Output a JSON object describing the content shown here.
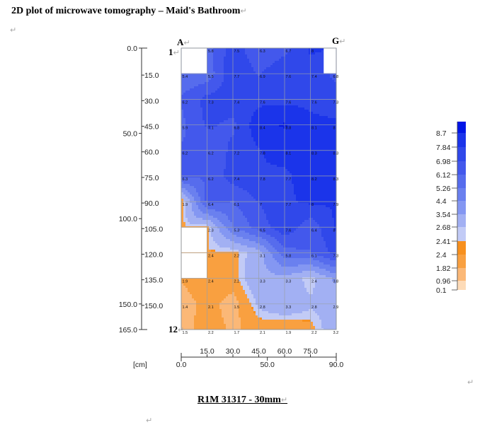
{
  "document": {
    "title": "2D plot of microwave tomography – Maid's Bathroom",
    "caption": "R1M 31317 - 30mm",
    "corner_a": "A",
    "corner_g": "G",
    "row_first": "1",
    "row_last": "12",
    "paragraph_mark": "↵"
  },
  "chart_data": {
    "type": "heatmap",
    "title": "2D plot of microwave tomography – Maid's Bathroom",
    "x_range": [
      0,
      90
    ],
    "y_range": [
      0,
      165
    ],
    "y_inverted": true,
    "x_ticks_bottom": [
      "0.0",
      "50.0",
      "90.0"
    ],
    "x_ticks_top": [
      "15.0",
      "30.0",
      "45.0",
      "60.0",
      "75.0"
    ],
    "y_ticks_left": [
      "0.0",
      "50.0",
      "100.0",
      "150.0",
      "165.0"
    ],
    "y_ticks_right": [
      "15.0",
      "30.0",
      "45.0",
      "60.0",
      "75.0",
      "90.0",
      "105.0",
      "120.0",
      "135.0",
      "150.0"
    ],
    "unit_label": "[cm]",
    "grid": true,
    "columns": 7,
    "rows": 12,
    "cell_values": [
      [
        "",
        "5.8",
        "7.5",
        "6.3",
        "6.7",
        "8",
        ""
      ],
      [
        "5.4",
        "5.5",
        "7.7",
        "6.9",
        "7.6",
        "7.4",
        "6.8"
      ],
      [
        "6.2",
        "7.3",
        "7.4",
        "7.6",
        "7.6",
        "7.6",
        "7.3"
      ],
      [
        "5.9",
        "7.1",
        "6.8",
        "8.4",
        "8.8",
        "8.1",
        "8"
      ],
      [
        "6.2",
        "6.2",
        "7.2",
        "7.8",
        "8.1",
        "8.3",
        "8.3"
      ],
      [
        "6.3",
        "6.2",
        "7.4",
        "7.8",
        "7.7",
        "8.2",
        "8.3"
      ],
      [
        "1.9",
        "6.4",
        "6.1",
        "7",
        "7.7",
        "8",
        "7.9"
      ],
      [
        "",
        "2.3",
        "5.3",
        "6.5",
        "7.6",
        "6.4",
        "8"
      ],
      [
        "",
        "2.4",
        "2.2",
        "3.1",
        "5.8",
        "6.1",
        "7.3"
      ],
      [
        "1.9",
        "2.4",
        "2.2",
        "3.3",
        "3.3",
        "2.4",
        "3.8"
      ],
      [
        "1.4",
        "2.1",
        "1.5",
        "2.8",
        "3.3",
        "2.8",
        "2.9"
      ],
      [
        "1.5",
        "2.2",
        "1.7",
        "2.1",
        "1.9",
        "2.2",
        "3.2"
      ]
    ],
    "legend": {
      "position": "right",
      "levels": [
        "8.7",
        "7.84",
        "6.98",
        "6.12",
        "5.26",
        "4.4",
        "3.54",
        "2.68",
        "2.41",
        "2.4",
        "1.82",
        "0.96",
        "0.1"
      ],
      "colors": [
        "#0015e6",
        "#1b34ea",
        "#3048ea",
        "#4358ec",
        "#566ced",
        "#6a80ef",
        "#8497f2",
        "#a2b0f3",
        "#c2cbf6",
        "#f7901e",
        "#f9a040",
        "#fbb877",
        "#fddbb8"
      ]
    }
  }
}
